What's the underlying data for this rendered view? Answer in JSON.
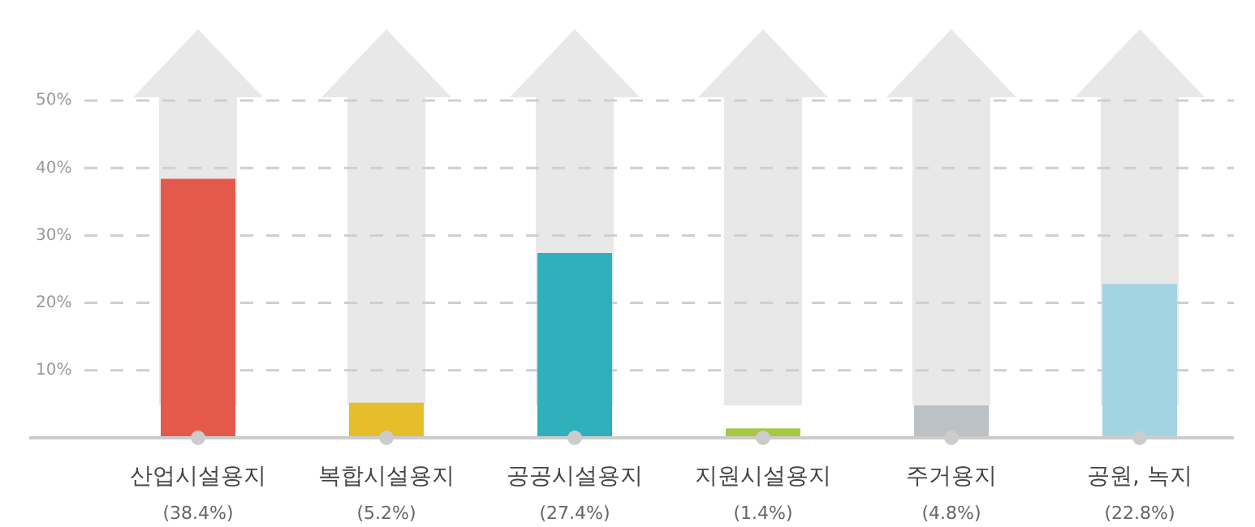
{
  "chart_data": {
    "type": "bar",
    "categories": [
      "산업시설용지\n(38.4%)",
      "복합시설용지\n(5.2%)",
      "공공시설용지\n(27.4%)",
      "지원시설용지\n(1.4%)",
      "주거용지\n(4.8%)",
      "공원, 녹지\n(22.8%)"
    ],
    "values": [
      38.4,
      5.2,
      27.4,
      1.4,
      4.8,
      22.8
    ],
    "colors": [
      "#e35a4a",
      "#e6bd2a",
      "#2fb0ba",
      "#a5c840",
      "#bcc1c5",
      "#a3d4e2"
    ],
    "ylim": [
      0,
      50
    ],
    "yticks": [
      {
        "value": 10,
        "label": "10%"
      },
      {
        "value": 20,
        "label": "20%"
      },
      {
        "value": 30,
        "label": "30%"
      },
      {
        "value": 40,
        "label": "40%"
      },
      {
        "value": 50,
        "label": "50%"
      }
    ],
    "grid": "y",
    "line_style": "dashed"
  }
}
